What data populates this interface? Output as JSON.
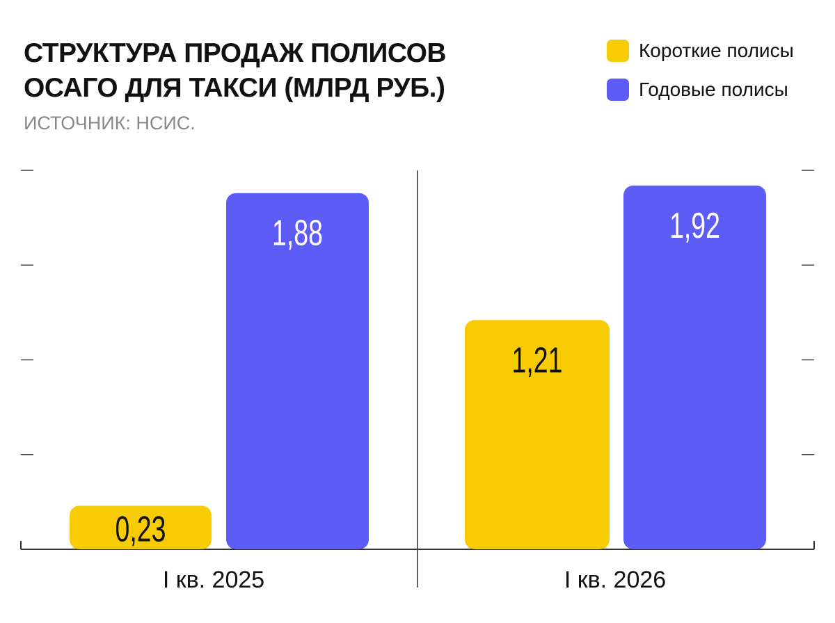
{
  "chart_data": {
    "type": "bar",
    "title": "СТРУКТУРА ПРОДАЖ ПОЛИСОВ ОСАГО ДЛЯ ТАКСИ (МЛРД РУБ.)",
    "title_lines": [
      "СТРУКТУРА ПРОДАЖ ПОЛИСОВ",
      "ОСАГО ДЛЯ ТАКСИ (МЛРД РУБ.)"
    ],
    "subtitle": "ИСТОЧНИК: НСИС.",
    "categories": [
      "I кв. 2025",
      "I кв. 2026"
    ],
    "series": [
      {
        "name": "Короткие полисы",
        "color": "#F7CC05",
        "values": [
          0.23,
          1.21
        ],
        "labels": [
          "0,23",
          "1,21"
        ],
        "label_color": "#111111"
      },
      {
        "name": "Годовые полисы",
        "color": "#5E5CF6",
        "values": [
          1.88,
          1.92
        ],
        "labels": [
          "1,88",
          "1,92"
        ],
        "label_color": "#FFFFFF"
      }
    ],
    "ylim": [
      0,
      2
    ],
    "yticks": [
      0.5,
      1.0,
      1.5,
      2.0
    ],
    "ytick_labels_shown": false,
    "grid": false,
    "legend": "top-right",
    "xlabel": "",
    "ylabel": ""
  }
}
